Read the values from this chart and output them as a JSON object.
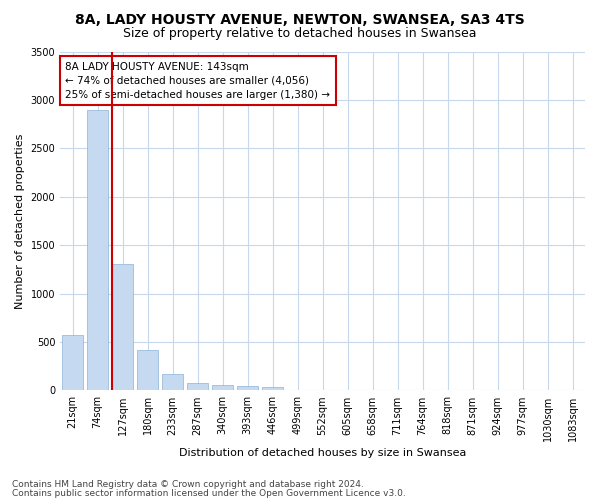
{
  "title1": "8A, LADY HOUSTY AVENUE, NEWTON, SWANSEA, SA3 4TS",
  "title2": "Size of property relative to detached houses in Swansea",
  "xlabel": "Distribution of detached houses by size in Swansea",
  "ylabel": "Number of detached properties",
  "categories": [
    "21sqm",
    "74sqm",
    "127sqm",
    "180sqm",
    "233sqm",
    "287sqm",
    "340sqm",
    "393sqm",
    "446sqm",
    "499sqm",
    "552sqm",
    "605sqm",
    "658sqm",
    "711sqm",
    "764sqm",
    "818sqm",
    "871sqm",
    "924sqm",
    "977sqm",
    "1030sqm",
    "1083sqm"
  ],
  "values": [
    575,
    2900,
    1310,
    420,
    165,
    80,
    55,
    45,
    35,
    0,
    0,
    0,
    0,
    0,
    0,
    0,
    0,
    0,
    0,
    0,
    0
  ],
  "bar_color": "#c5d9f0",
  "bar_edge_color": "#8ab4d8",
  "vline_color": "#cc0000",
  "annotation_text": "8A LADY HOUSTY AVENUE: 143sqm\n← 74% of detached houses are smaller (4,056)\n25% of semi-detached houses are larger (1,380) →",
  "annotation_box_color": "#ffffff",
  "annotation_box_edge": "#cc0000",
  "ylim": [
    0,
    3500
  ],
  "yticks": [
    0,
    500,
    1000,
    1500,
    2000,
    2500,
    3000,
    3500
  ],
  "footer1": "Contains HM Land Registry data © Crown copyright and database right 2024.",
  "footer2": "Contains public sector information licensed under the Open Government Licence v3.0.",
  "bg_color": "#ffffff",
  "plot_bg_color": "#ffffff",
  "grid_color": "#c8d8ec",
  "title_fontsize": 10,
  "subtitle_fontsize": 9,
  "label_fontsize": 8,
  "tick_fontsize": 7,
  "annotation_fontsize": 7.5,
  "footer_fontsize": 6.5
}
